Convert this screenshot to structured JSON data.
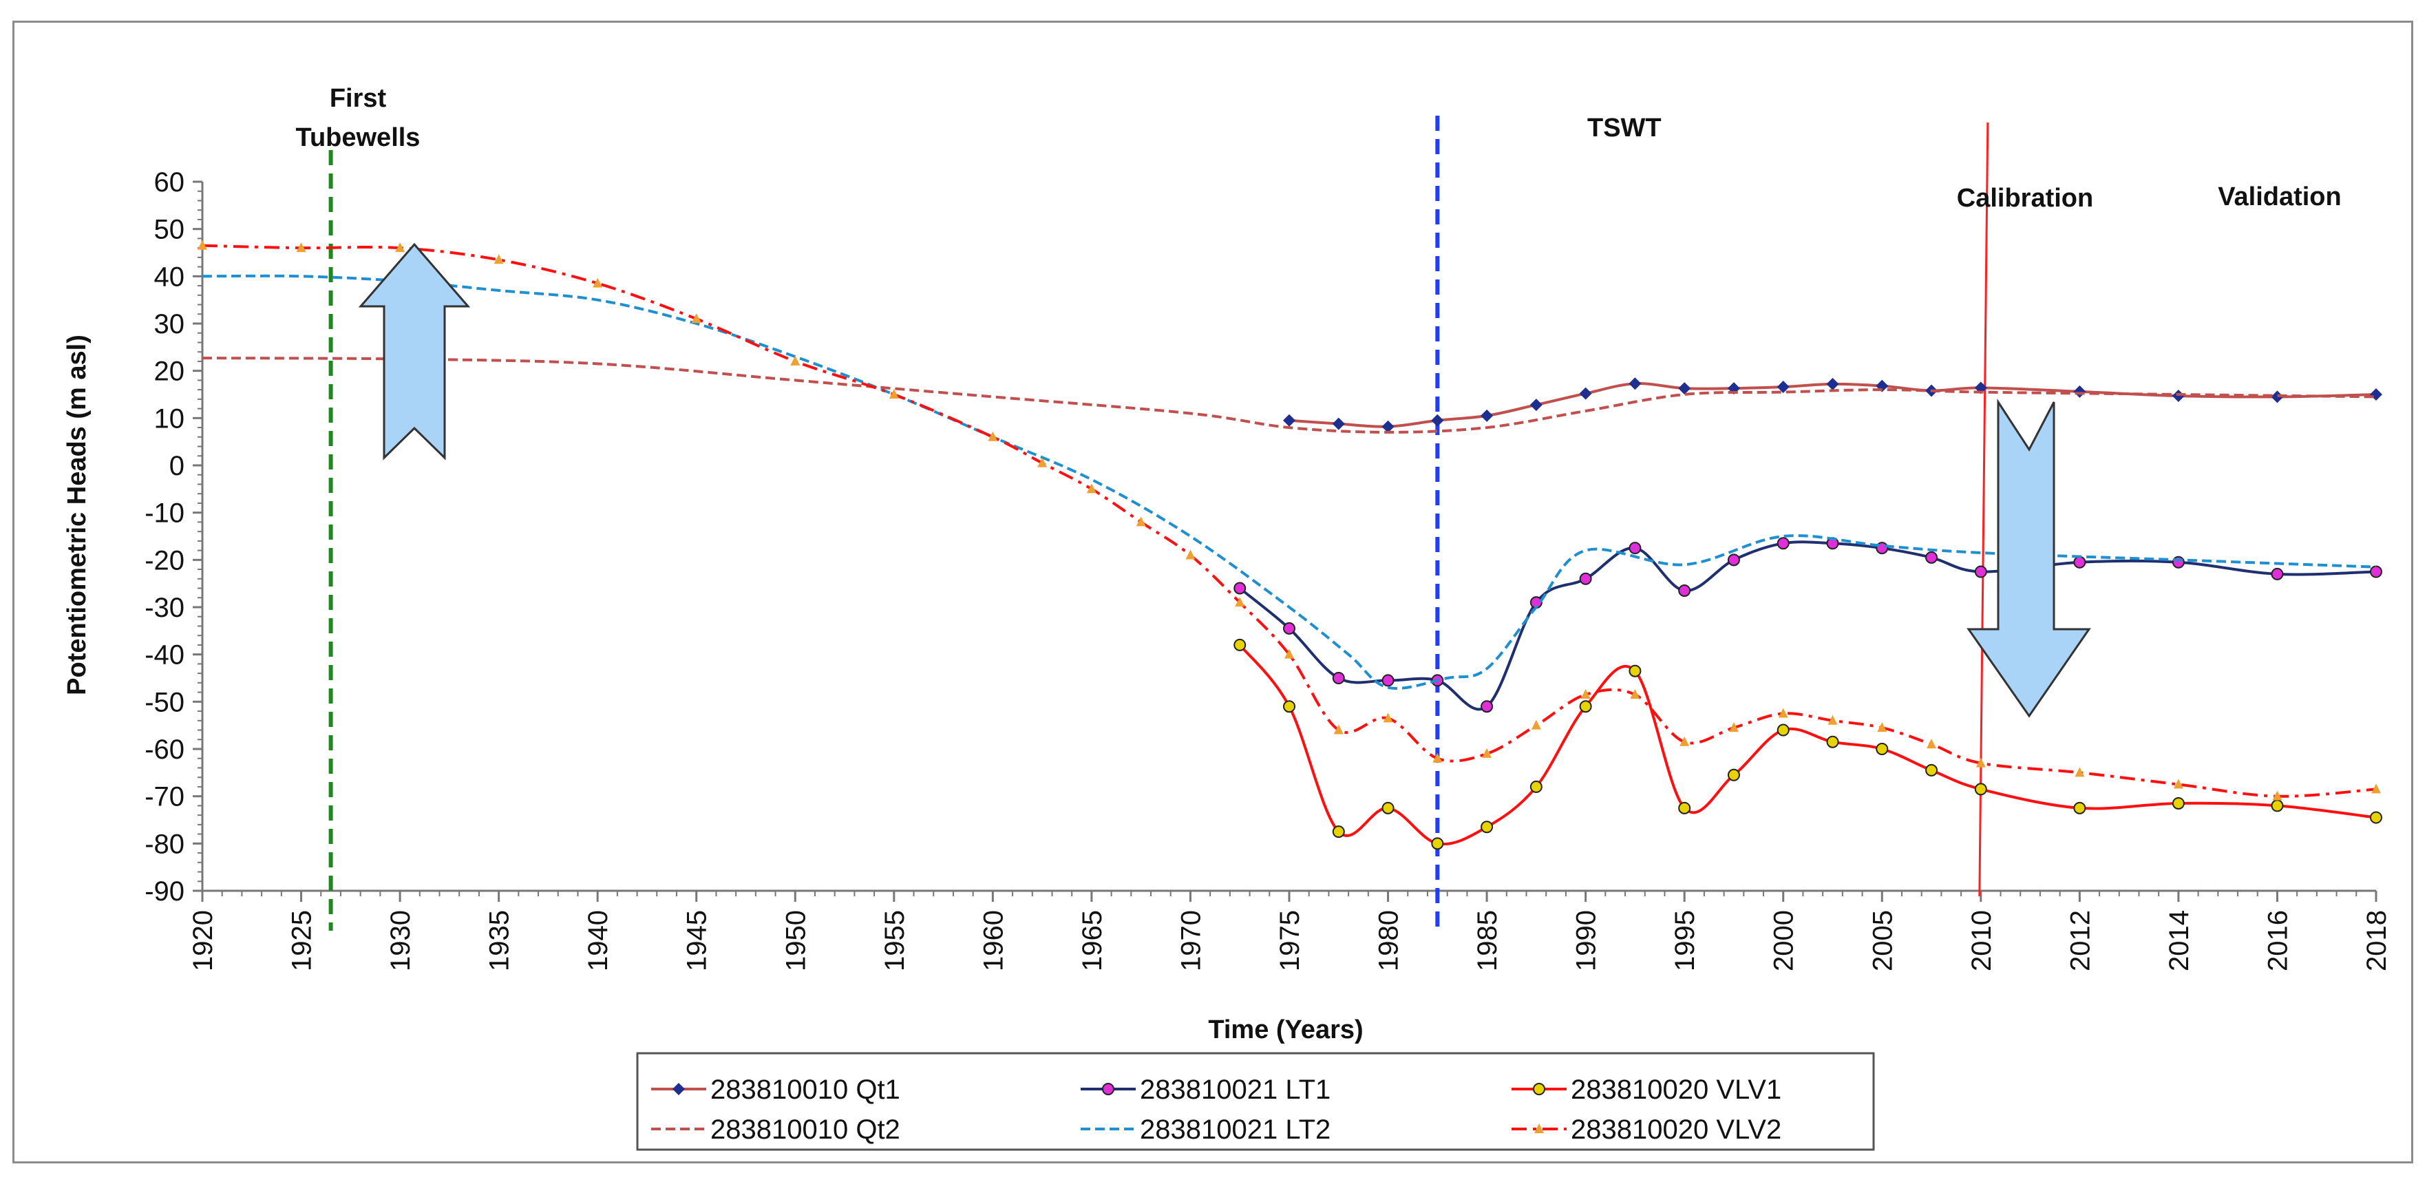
{
  "chart_data": {
    "type": "line",
    "title": "",
    "xlabel": "Time (Years)",
    "ylabel": "Potentiometric Heads (m asl)",
    "ylim": [
      -90,
      60
    ],
    "yticks": [
      "60",
      "50",
      "40",
      "30",
      "20",
      "10",
      "0",
      "-10",
      "-20",
      "-30",
      "-40",
      "-50",
      "-60",
      "-70",
      "-80",
      "-90"
    ],
    "xticks": [
      "1920",
      "1925",
      "1930",
      "1935",
      "1940",
      "1945",
      "1950",
      "1955",
      "1960",
      "1965",
      "1970",
      "1975",
      "1980",
      "1985",
      "1990",
      "1995",
      "2000",
      "2005",
      "2010",
      "2012",
      "2014",
      "2016",
      "2018"
    ],
    "annotations": {
      "first_tubewells": "First\nTubewells",
      "first_tubewells_line1": "First",
      "first_tubewells_line2": "Tubewells",
      "tswt": "TSWT",
      "calibration": "Calibration",
      "validation": "Validation"
    },
    "vertical_markers": [
      {
        "name": "first-tubewells-line",
        "x": 1926.5,
        "color": "#1e8a1e",
        "style": "dashed"
      },
      {
        "name": "tswt-line",
        "x": 1982.5,
        "color": "#1f3cff",
        "style": "dashed"
      },
      {
        "name": "calibration-validation-divider",
        "x": 2010,
        "color": "#ff2020",
        "style": "solid"
      }
    ],
    "series": [
      {
        "name": "283810010 Qt1",
        "color": "#c0504d",
        "dash": "solid",
        "marker": "diamond",
        "marker_color": "#1f2f8f",
        "x": [
          1975,
          1977.5,
          1980,
          1982.5,
          1985,
          1987.5,
          1990,
          1992.5,
          1995,
          1997.5,
          2000,
          2002.5,
          2005,
          2007.5,
          2010,
          2012,
          2014,
          2016,
          2018
        ],
        "y": [
          9.5,
          8.8,
          8.2,
          9.5,
          10.5,
          12.8,
          15.2,
          17.3,
          16.3,
          16.3,
          16.6,
          17.2,
          16.8,
          15.8,
          16.4,
          15.6,
          14.7,
          14.5,
          15.0
        ]
      },
      {
        "name": "283810010 Qt2",
        "color": "#c0504d",
        "dash": "dashed",
        "marker": "none",
        "x": [
          1920,
          1930,
          1940,
          1950,
          1960,
          1970,
          1975,
          1980,
          1985,
          1990,
          1995,
          2000,
          2005,
          2010,
          2014,
          2018
        ],
        "y": [
          22.7,
          22.5,
          21.5,
          18.0,
          14.5,
          11.0,
          8.0,
          7.0,
          8.0,
          11.5,
          15.0,
          15.5,
          16.0,
          15.5,
          15.0,
          14.5
        ]
      },
      {
        "name": "283810021 LT1",
        "color": "#1f2f6f",
        "dash": "solid",
        "marker": "circle",
        "marker_color": "#e02fd8",
        "x": [
          1972.5,
          1975,
          1977.5,
          1980,
          1982.5,
          1985,
          1987.5,
          1990,
          1992.5,
          1995,
          1997.5,
          2000,
          2002.5,
          2005,
          2007.5,
          2010,
          2012,
          2014,
          2016,
          2018
        ],
        "y": [
          -26,
          -34.5,
          -45,
          -45.5,
          -45.5,
          -51,
          -29,
          -24,
          -17.5,
          -26.5,
          -20,
          -16.5,
          -16.5,
          -17.5,
          -19.5,
          -22.5,
          -20.5,
          -20.5,
          -23,
          -22.5
        ]
      },
      {
        "name": "283810021 LT2",
        "color": "#1f8fd0",
        "dash": "dashed",
        "marker": "none",
        "x": [
          1920,
          1925,
          1930,
          1935,
          1940,
          1945,
          1950,
          1955,
          1960,
          1965,
          1970,
          1975,
          1978,
          1980,
          1983,
          1985,
          1987.5,
          1990,
          1995,
          2000,
          2005,
          2010,
          2014,
          2018
        ],
        "y": [
          40,
          40,
          39,
          37,
          35,
          30,
          23,
          15,
          6,
          -3,
          -15,
          -30,
          -40,
          -47,
          -45,
          -43,
          -30,
          -18,
          -21,
          -15,
          -17,
          -18.5,
          -20,
          -21.5
        ]
      },
      {
        "name": "283810020 VLV1",
        "color": "#ff1010",
        "dash": "solid",
        "marker": "circle",
        "marker_color": "#e8d200",
        "x": [
          1972.5,
          1975,
          1977.5,
          1980,
          1982.5,
          1985,
          1987.5,
          1990,
          1992.5,
          1995,
          1997.5,
          2000,
          2002.5,
          2005,
          2007.5,
          2010,
          2012,
          2014,
          2016,
          2018
        ],
        "y": [
          -38,
          -51,
          -77.5,
          -72.5,
          -80,
          -76.5,
          -68,
          -51,
          -43.5,
          -72.5,
          -65.5,
          -56,
          -58.5,
          -60,
          -64.5,
          -68.5,
          -72.5,
          -71.5,
          -72,
          -74.5
        ]
      },
      {
        "name": "283810020 VLV2",
        "color": "#ff1010",
        "dash": "dashdot",
        "marker": "triangle",
        "marker_color": "#f0a030",
        "x": [
          1920,
          1925,
          1930,
          1935,
          1940,
          1945,
          1950,
          1955,
          1960,
          1962.5,
          1965,
          1967.5,
          1970,
          1972.5,
          1975,
          1977.5,
          1980,
          1982.5,
          1985,
          1987.5,
          1990,
          1992.5,
          1995,
          1997.5,
          2000,
          2002.5,
          2005,
          2007.5,
          2010,
          2012,
          2014,
          2016,
          2018
        ],
        "y": [
          46.5,
          46,
          46,
          43.5,
          38.5,
          31,
          22,
          15,
          6,
          0.5,
          -5,
          -12,
          -19,
          -29,
          -40,
          -56,
          -53.5,
          -62,
          -61,
          -55,
          -48.5,
          -48.5,
          -58.5,
          -55.5,
          -52.5,
          -54,
          -55.5,
          -59,
          -63,
          -65,
          -67.5,
          -70,
          -68.5
        ]
      }
    ],
    "legend": {
      "position": "bottom",
      "entries": [
        "283810010 Qt1",
        "283810021 LT1",
        "283810020 VLV1",
        "283810010 Qt2",
        "283810021 LT2",
        "283810020 VLV2"
      ]
    }
  },
  "arrows": {
    "up": {
      "direction": "up",
      "color": "#a9d3f7"
    },
    "down": {
      "direction": "down",
      "color": "#a9d3f7"
    }
  }
}
